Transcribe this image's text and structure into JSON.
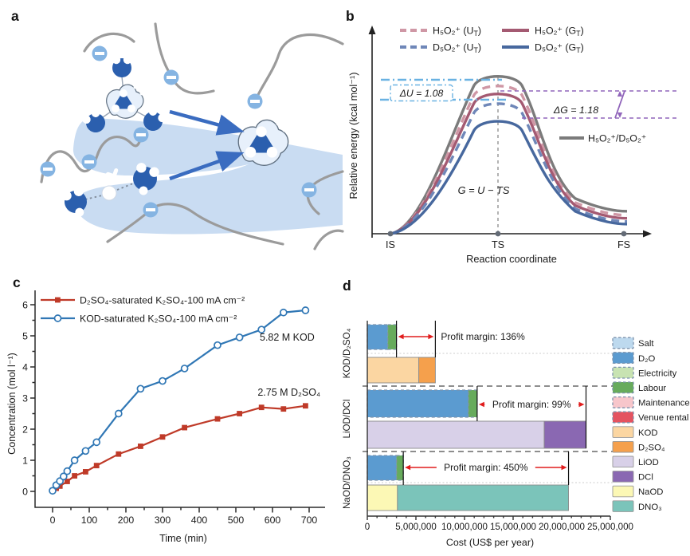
{
  "panels": {
    "a": {
      "label": "a"
    },
    "b": {
      "label": "b"
    },
    "c": {
      "label": "c"
    },
    "d": {
      "label": "d"
    }
  },
  "panel_a": {
    "symbols": {
      "plus": "+",
      "minus": "−"
    }
  },
  "chart_data": [
    {
      "id": "b",
      "type": "line",
      "panel": "b",
      "xlabel": "Reaction coordinate",
      "ylabel": "Relative energy (kcal mol⁻¹)",
      "x_categories": [
        "IS",
        "TS",
        "FS"
      ],
      "axis_numeric": false,
      "series": [
        {
          "name": "H₅O₂⁺/D₅O₂⁺",
          "color": "#7b7b7b",
          "dash": false,
          "peak": 1.0,
          "end": 0.14,
          "role": "combined"
        },
        {
          "name": "H₅O₂⁺ (U_T)",
          "color": "#cf97a5",
          "dash": true,
          "peak": 0.94,
          "end": 0.115
        },
        {
          "name": "H₅O₂⁺ (G_T)",
          "color": "#a45a72",
          "dash": false,
          "peak": 0.89,
          "end": 0.096
        },
        {
          "name": "D₅O₂⁺ (U_T)",
          "color": "#6f87b8",
          "dash": true,
          "peak": 0.83,
          "end": 0.076
        },
        {
          "name": "D₅O₂⁺ (G_T)",
          "color": "#47689e",
          "dash": false,
          "peak": 0.72,
          "end": 0.06
        }
      ],
      "annotations": {
        "delta_u": {
          "text": "ΔU = 1.08",
          "color": "#6ab2e2"
        },
        "delta_g": {
          "text": "ΔG = 1.18",
          "color": "#9166bb"
        },
        "equation": "G = U − TS"
      }
    },
    {
      "id": "c",
      "type": "line",
      "panel": "c",
      "xlabel": "Time (min)",
      "ylabel": "Concentration (mol l⁻¹)",
      "xlim": [
        0,
        700
      ],
      "ylim": [
        0,
        6
      ],
      "xtick_step": 100,
      "ytick_step": 1,
      "series": [
        {
          "name": "D₂SO₄-saturated K₂SO₄-100 mA cm⁻²",
          "color": "#bf3a28",
          "marker": "square",
          "x": [
            0,
            10,
            20,
            40,
            60,
            90,
            120,
            180,
            240,
            300,
            360,
            450,
            510,
            570,
            630,
            690
          ],
          "y": [
            0.03,
            0.1,
            0.17,
            0.32,
            0.5,
            0.63,
            0.83,
            1.2,
            1.45,
            1.75,
            2.05,
            2.33,
            2.5,
            2.7,
            2.65,
            2.75
          ]
        },
        {
          "name": "KOD-saturated K₂SO₄-100 mA cm⁻²",
          "color": "#3077b5",
          "marker": "circle-open",
          "x": [
            0,
            10,
            20,
            30,
            40,
            60,
            90,
            120,
            180,
            240,
            300,
            360,
            450,
            510,
            570,
            630,
            690
          ],
          "y": [
            0.02,
            0.2,
            0.33,
            0.48,
            0.65,
            1.0,
            1.3,
            1.58,
            2.5,
            3.3,
            3.55,
            3.95,
            4.7,
            4.95,
            5.2,
            5.75,
            5.82
          ]
        }
      ],
      "annotations": [
        {
          "text": "5.82 M KOD",
          "x": 640,
          "y": 4.85
        },
        {
          "text": "2.75 M D₂SO₄",
          "x": 645,
          "y": 3.08
        }
      ]
    },
    {
      "id": "d",
      "type": "bar",
      "panel": "d",
      "orientation": "horizontal",
      "stacked": true,
      "xlabel": "Cost (US$ per year)",
      "xlim": [
        0,
        25000000
      ],
      "xticks": [
        "0",
        "5,000,000",
        "10,000,000",
        "15,000,000",
        "20,000,000",
        "25,000,000"
      ],
      "groups": [
        {
          "label": "KOD/D₂SO₄",
          "profit_margin": "Profit margin: 136%",
          "cost": [
            {
              "name": "D₂O",
              "value": 2100000
            },
            {
              "name": "Labour",
              "value": 900000
            }
          ],
          "revenue": [
            {
              "name": "KOD",
              "value": 5300000
            },
            {
              "name": "D₂SO₄",
              "value": 1700000
            }
          ]
        },
        {
          "label": "LiOD/DCl",
          "profit_margin": "Profit margin: 99%",
          "cost": [
            {
              "name": "D₂O",
              "value": 10400000
            },
            {
              "name": "Labour",
              "value": 900000
            }
          ],
          "revenue": [
            {
              "name": "LiOD",
              "value": 18200000
            },
            {
              "name": "DCl",
              "value": 4300000
            }
          ]
        },
        {
          "label": "NaOD/DNO₃",
          "profit_margin": "Profit margin: 450%",
          "cost": [
            {
              "name": "D₂O",
              "value": 3000000
            },
            {
              "name": "Labour",
              "value": 700000
            }
          ],
          "revenue": [
            {
              "name": "NaOD",
              "value": 3100000
            },
            {
              "name": "DNO₃",
              "value": 17600000
            }
          ]
        }
      ],
      "legend": [
        {
          "label": "Salt",
          "color": "#bdd9ee",
          "dashed": true
        },
        {
          "label": "D₂O",
          "color": "#5b9bd0",
          "dashed": true
        },
        {
          "label": "Electricity",
          "color": "#c8e3b2",
          "dashed": true
        },
        {
          "label": "Labour",
          "color": "#67ab5c",
          "dashed": true
        },
        {
          "label": "Maintenance",
          "color": "#f7c6cb",
          "dashed": true
        },
        {
          "label": "Venue rental",
          "color": "#e45360",
          "dashed": true
        },
        {
          "label": "KOD",
          "color": "#fbd6a2",
          "dashed": false
        },
        {
          "label": "D₂SO₄",
          "color": "#f5a04c",
          "dashed": false
        },
        {
          "label": "LiOD",
          "color": "#d8d0e8",
          "dashed": false
        },
        {
          "label": "DCl",
          "color": "#8a68b2",
          "dashed": false
        },
        {
          "label": "NaOD",
          "color": "#fcf8b5",
          "dashed": false
        },
        {
          "label": "DNO₃",
          "color": "#7bc4ba",
          "dashed": false
        }
      ],
      "segment_colors": {
        "D₂O": "#5b9bd0",
        "Labour": "#67ab5c",
        "KOD": "#fbd6a2",
        "D₂SO₄": "#f5a04c",
        "LiOD": "#d8d0e8",
        "DCl": "#8a68b2",
        "NaOD": "#fcf8b5",
        "DNO₃": "#7bc4ba"
      },
      "arrow_color": "#e11d1d"
    }
  ]
}
